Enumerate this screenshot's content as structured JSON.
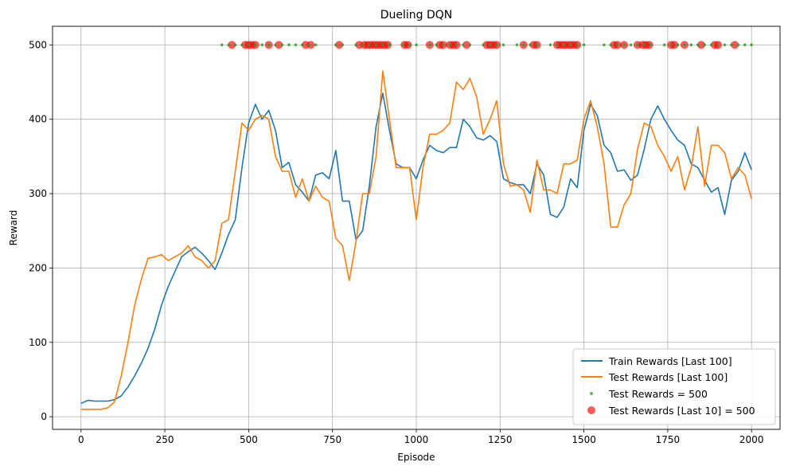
{
  "chart_data": {
    "type": "line",
    "title": "Dueling DQN",
    "xlabel": "Episode",
    "ylabel": "Reward",
    "xlim": [
      -85,
      2085
    ],
    "ylim": [
      -17,
      525
    ],
    "xticks": [
      0,
      250,
      500,
      750,
      1000,
      1250,
      1500,
      1750,
      2000
    ],
    "yticks": [
      0,
      100,
      200,
      300,
      400,
      500
    ],
    "grid": true,
    "legend_position": "bottom-right",
    "colors": {
      "train": "#1f77b4",
      "test": "#ff7f0e",
      "test500": "#2ca02c",
      "last10": "#ff0000"
    },
    "series": [
      {
        "name": "Train Rewards [Last 100]",
        "kind": "line",
        "x": [
          0,
          20,
          40,
          60,
          80,
          100,
          120,
          140,
          160,
          180,
          200,
          220,
          240,
          260,
          280,
          300,
          320,
          340,
          360,
          380,
          400,
          420,
          440,
          460,
          480,
          500,
          520,
          540,
          560,
          580,
          600,
          620,
          640,
          660,
          680,
          700,
          720,
          740,
          760,
          780,
          800,
          820,
          840,
          860,
          880,
          900,
          920,
          940,
          960,
          980,
          1000,
          1020,
          1040,
          1060,
          1080,
          1100,
          1120,
          1140,
          1160,
          1180,
          1200,
          1220,
          1240,
          1260,
          1280,
          1300,
          1320,
          1340,
          1360,
          1380,
          1400,
          1420,
          1440,
          1460,
          1480,
          1500,
          1520,
          1540,
          1560,
          1580,
          1600,
          1620,
          1640,
          1660,
          1680,
          1700,
          1720,
          1740,
          1760,
          1780,
          1800,
          1820,
          1840,
          1860,
          1880,
          1900,
          1920,
          1940,
          1960,
          1980,
          2000
        ],
        "y": [
          18,
          22,
          21,
          21,
          21,
          23,
          28,
          40,
          55,
          72,
          92,
          118,
          150,
          175,
          195,
          215,
          222,
          228,
          220,
          210,
          198,
          220,
          245,
          265,
          335,
          395,
          420,
          400,
          412,
          385,
          335,
          342,
          312,
          302,
          290,
          325,
          328,
          320,
          358,
          290,
          290,
          238,
          250,
          310,
          390,
          435,
          385,
          340,
          335,
          335,
          320,
          345,
          365,
          358,
          355,
          362,
          362,
          400,
          390,
          375,
          372,
          378,
          370,
          320,
          315,
          312,
          312,
          300,
          340,
          325,
          272,
          268,
          282,
          320,
          308,
          385,
          420,
          405,
          365,
          355,
          330,
          332,
          318,
          325,
          360,
          400,
          418,
          400,
          385,
          372,
          365,
          340,
          335,
          318,
          302,
          308,
          272,
          318,
          330,
          355,
          332
        ]
      },
      {
        "name": "Test Rewards [Last 100]",
        "kind": "line",
        "x": [
          0,
          20,
          40,
          60,
          80,
          100,
          120,
          140,
          160,
          180,
          200,
          220,
          240,
          260,
          280,
          300,
          320,
          340,
          360,
          380,
          400,
          420,
          440,
          460,
          480,
          500,
          520,
          540,
          560,
          580,
          600,
          620,
          640,
          660,
          680,
          700,
          720,
          740,
          760,
          780,
          800,
          820,
          840,
          860,
          880,
          900,
          920,
          940,
          960,
          980,
          1000,
          1020,
          1040,
          1060,
          1080,
          1100,
          1120,
          1140,
          1160,
          1180,
          1200,
          1220,
          1240,
          1260,
          1280,
          1300,
          1320,
          1340,
          1360,
          1380,
          1400,
          1420,
          1440,
          1460,
          1480,
          1500,
          1520,
          1540,
          1560,
          1580,
          1600,
          1620,
          1640,
          1660,
          1680,
          1700,
          1720,
          1740,
          1760,
          1780,
          1800,
          1820,
          1840,
          1860,
          1880,
          1900,
          1920,
          1940,
          1960,
          1980,
          2000
        ],
        "y": [
          10,
          10,
          10,
          10,
          12,
          20,
          55,
          100,
          150,
          185,
          213,
          215,
          218,
          210,
          215,
          220,
          230,
          215,
          210,
          200,
          210,
          260,
          265,
          330,
          395,
          385,
          400,
          405,
          400,
          350,
          330,
          330,
          295,
          320,
          290,
          310,
          295,
          290,
          240,
          230,
          183,
          235,
          300,
          300,
          350,
          465,
          400,
          335,
          335,
          335,
          265,
          335,
          380,
          380,
          385,
          395,
          450,
          440,
          455,
          430,
          380,
          400,
          425,
          340,
          310,
          312,
          305,
          275,
          345,
          305,
          305,
          300,
          340,
          340,
          345,
          400,
          425,
          390,
          340,
          255,
          255,
          285,
          300,
          360,
          395,
          390,
          365,
          350,
          330,
          350,
          305,
          335,
          390,
          310,
          365,
          365,
          355,
          320,
          335,
          325,
          293
        ]
      },
      {
        "name": "Test Rewards = 500",
        "kind": "scatter",
        "y_value": 500,
        "x": [
          420,
          440,
          460,
          480,
          500,
          520,
          540,
          560,
          580,
          600,
          620,
          640,
          660,
          680,
          700,
          760,
          780,
          820,
          840,
          860,
          880,
          900,
          920,
          960,
          980,
          1000,
          1040,
          1060,
          1080,
          1100,
          1120,
          1140,
          1160,
          1200,
          1220,
          1240,
          1260,
          1300,
          1320,
          1340,
          1360,
          1400,
          1420,
          1440,
          1460,
          1480,
          1500,
          1560,
          1580,
          1600,
          1620,
          1640,
          1660,
          1680,
          1700,
          1740,
          1760,
          1780,
          1800,
          1820,
          1840,
          1860,
          1880,
          1900,
          1920,
          1940,
          1960,
          1980,
          2000
        ]
      },
      {
        "name": "Test Rewards [Last 10] = 500",
        "kind": "scatter",
        "y_value": 500,
        "x": [
          450,
          490,
          500,
          510,
          520,
          560,
          590,
          670,
          685,
          770,
          830,
          845,
          855,
          865,
          875,
          885,
          895,
          905,
          915,
          965,
          975,
          1040,
          1070,
          1080,
          1100,
          1110,
          1120,
          1150,
          1210,
          1220,
          1230,
          1240,
          1320,
          1350,
          1360,
          1420,
          1430,
          1440,
          1450,
          1460,
          1470,
          1480,
          1590,
          1600,
          1620,
          1660,
          1675,
          1685,
          1695,
          1760,
          1770,
          1800,
          1850,
          1890,
          1900,
          1950
        ]
      }
    ]
  }
}
